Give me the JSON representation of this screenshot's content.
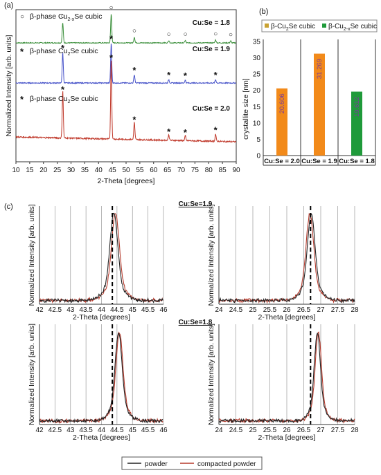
{
  "colors": {
    "green": "#3b8f3b",
    "blue": "#4450c8",
    "red": "#c0392b",
    "orange": "#f28a1a",
    "olive": "#c9a233",
    "darkgreen": "#1f9a3a",
    "black": "#222222",
    "redline": "#b53a2c"
  },
  "panel_labels": {
    "a": "(a)",
    "b": "(b)",
    "c": "(c)"
  },
  "chart_data": [
    {
      "id": "a",
      "type": "line",
      "xlabel": "2-Theta [degrees]",
      "ylabel": "Normalized Intensity [arb. units]",
      "xlim": [
        10,
        90
      ],
      "x_ticks": [
        "10",
        "15",
        "20",
        "25",
        "30",
        "35",
        "40",
        "45",
        "50",
        "55",
        "60",
        "65",
        "70",
        "75",
        "80",
        "85",
        "90"
      ],
      "series": [
        {
          "label": "Cu:Se = 1.8",
          "phase_label": "β-phase Cu2-xSe cubic",
          "color": "green",
          "peaks": [
            {
              "x": 27,
              "h": 0.42
            },
            {
              "x": 44.6,
              "h": 0.6
            },
            {
              "x": 53,
              "h": 0.12
            },
            {
              "x": 65.5,
              "h": 0.05
            },
            {
              "x": 71.5,
              "h": 0.05
            },
            {
              "x": 82.5,
              "h": 0.06
            },
            {
              "x": 88,
              "h": 0.04
            }
          ]
        },
        {
          "label": "Cu:Se = 1.9",
          "phase_label": "β-phase Cu2Se cubic",
          "color": "blue",
          "peaks": [
            {
              "x": 27,
              "h": 0.55
            },
            {
              "x": 44.6,
              "h": 0.72
            },
            {
              "x": 53,
              "h": 0.15
            },
            {
              "x": 65.5,
              "h": 0.06
            },
            {
              "x": 71.5,
              "h": 0.05
            },
            {
              "x": 82.5,
              "h": 0.06
            }
          ]
        },
        {
          "label": "Cu:Se = 2.0",
          "phase_label": "β-phase Cu2Se cubic",
          "color": "red",
          "peaks": [
            {
              "x": 27,
              "h": 0.6
            },
            {
              "x": 44.6,
              "h": 1.0
            },
            {
              "x": 53,
              "h": 0.22
            },
            {
              "x": 65.5,
              "h": 0.07
            },
            {
              "x": 71.5,
              "h": 0.06
            },
            {
              "x": 82.5,
              "h": 0.09
            }
          ]
        }
      ]
    },
    {
      "id": "b",
      "type": "bar",
      "ylabel": "crystallite size [nm]",
      "ylim": [
        0,
        35
      ],
      "y_ticks": [
        0,
        5,
        10,
        15,
        20,
        25,
        30,
        35
      ],
      "categories": [
        "Cu:Se = 2.0",
        "Cu:Se = 1.9",
        "Cu:Se = 1.8"
      ],
      "values": [
        20.606,
        31.269,
        19.612
      ],
      "value_labels": [
        "20.606",
        "31.269",
        "19.612"
      ],
      "bar_colors": [
        "orange",
        "orange",
        "darkgreen"
      ],
      "legend": [
        "β-Cu2Se cubic",
        "β-Cu2-xSe cubic"
      ]
    },
    {
      "id": "c",
      "type": "line",
      "xlabel": "2-Theta [degrees]",
      "ylabel": "Normalized Intensity [arb. units]",
      "row_titles": [
        "Cu:Se=1.9",
        "Cu:Se=1.8"
      ],
      "subplots": [
        {
          "xlim": [
            42,
            46
          ],
          "x_ticks": [
            "42",
            "42.5",
            "43",
            "43.5",
            "44",
            "44.5",
            "45",
            "45.5",
            "46"
          ],
          "ref": 44.35,
          "center_black": 44.4,
          "center_red": 44.45,
          "width": 0.17
        },
        {
          "xlim": [
            24,
            28
          ],
          "x_ticks": [
            "24",
            "24.5",
            "25",
            "25.5",
            "26",
            "26.5",
            "27",
            "27.5",
            "28"
          ],
          "ref": 26.7,
          "center_black": 26.72,
          "center_red": 26.68,
          "width": 0.15
        },
        {
          "xlim": [
            42,
            46
          ],
          "x_ticks": [
            "42",
            "42.5",
            "43",
            "43.5",
            "44",
            "44.5",
            "45",
            "45.5",
            "46"
          ],
          "ref": 44.35,
          "center_black": 44.55,
          "center_red": 44.58,
          "width": 0.15
        },
        {
          "xlim": [
            24,
            28
          ],
          "x_ticks": [
            "24",
            "24.5",
            "25",
            "25.5",
            "26",
            "26.5",
            "27",
            "27.5",
            "28"
          ],
          "ref": 26.7,
          "center_black": 26.9,
          "center_red": 26.93,
          "width": 0.12
        }
      ],
      "legend": [
        "powder",
        "compacted powder"
      ]
    }
  ]
}
